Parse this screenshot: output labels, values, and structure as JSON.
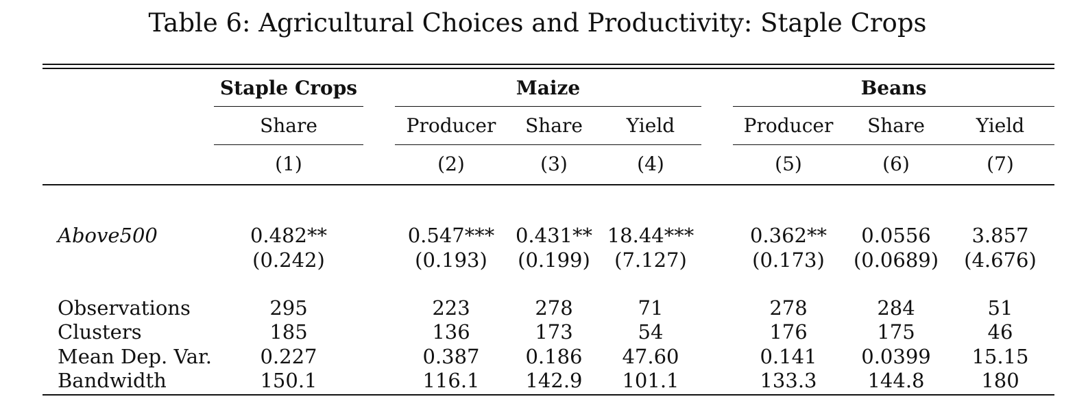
{
  "title": "Table 6: Agricultural Choices and Productivity: Staple Crops",
  "groups": [
    {
      "label": "Staple Crops"
    },
    {
      "label": "Maize"
    },
    {
      "label": "Beans"
    }
  ],
  "columns": [
    {
      "label": "Share",
      "num": "(1)"
    },
    {
      "label": "Producer",
      "num": "(2)"
    },
    {
      "label": "Share",
      "num": "(3)"
    },
    {
      "label": "Yield",
      "num": "(4)"
    },
    {
      "label": "Producer",
      "num": "(5)"
    },
    {
      "label": "Share",
      "num": "(6)"
    },
    {
      "label": "Yield",
      "num": "(7)"
    }
  ],
  "coef_row": {
    "label": "Above500",
    "estimates": [
      "0.482**",
      "0.547***",
      "0.431**",
      "18.44***",
      "0.362**",
      "0.0556",
      "3.857"
    ],
    "std_errors": [
      "(0.242)",
      "(0.193)",
      "(0.199)",
      "(7.127)",
      "(0.173)",
      "(0.0689)",
      "(4.676)"
    ]
  },
  "stats_rows": [
    {
      "label": "Observations",
      "values": [
        "295",
        "223",
        "278",
        "71",
        "278",
        "284",
        "51"
      ]
    },
    {
      "label": "Clusters",
      "values": [
        "185",
        "136",
        "173",
        "54",
        "176",
        "175",
        "46"
      ]
    },
    {
      "label": "Mean Dep. Var.",
      "values": [
        "0.227",
        "0.387",
        "0.186",
        "47.60",
        "0.141",
        "0.0399",
        "15.15"
      ]
    },
    {
      "label": "Bandwidth",
      "values": [
        "150.1",
        "116.1",
        "142.9",
        "101.1",
        "133.3",
        "144.8",
        "180"
      ]
    }
  ]
}
